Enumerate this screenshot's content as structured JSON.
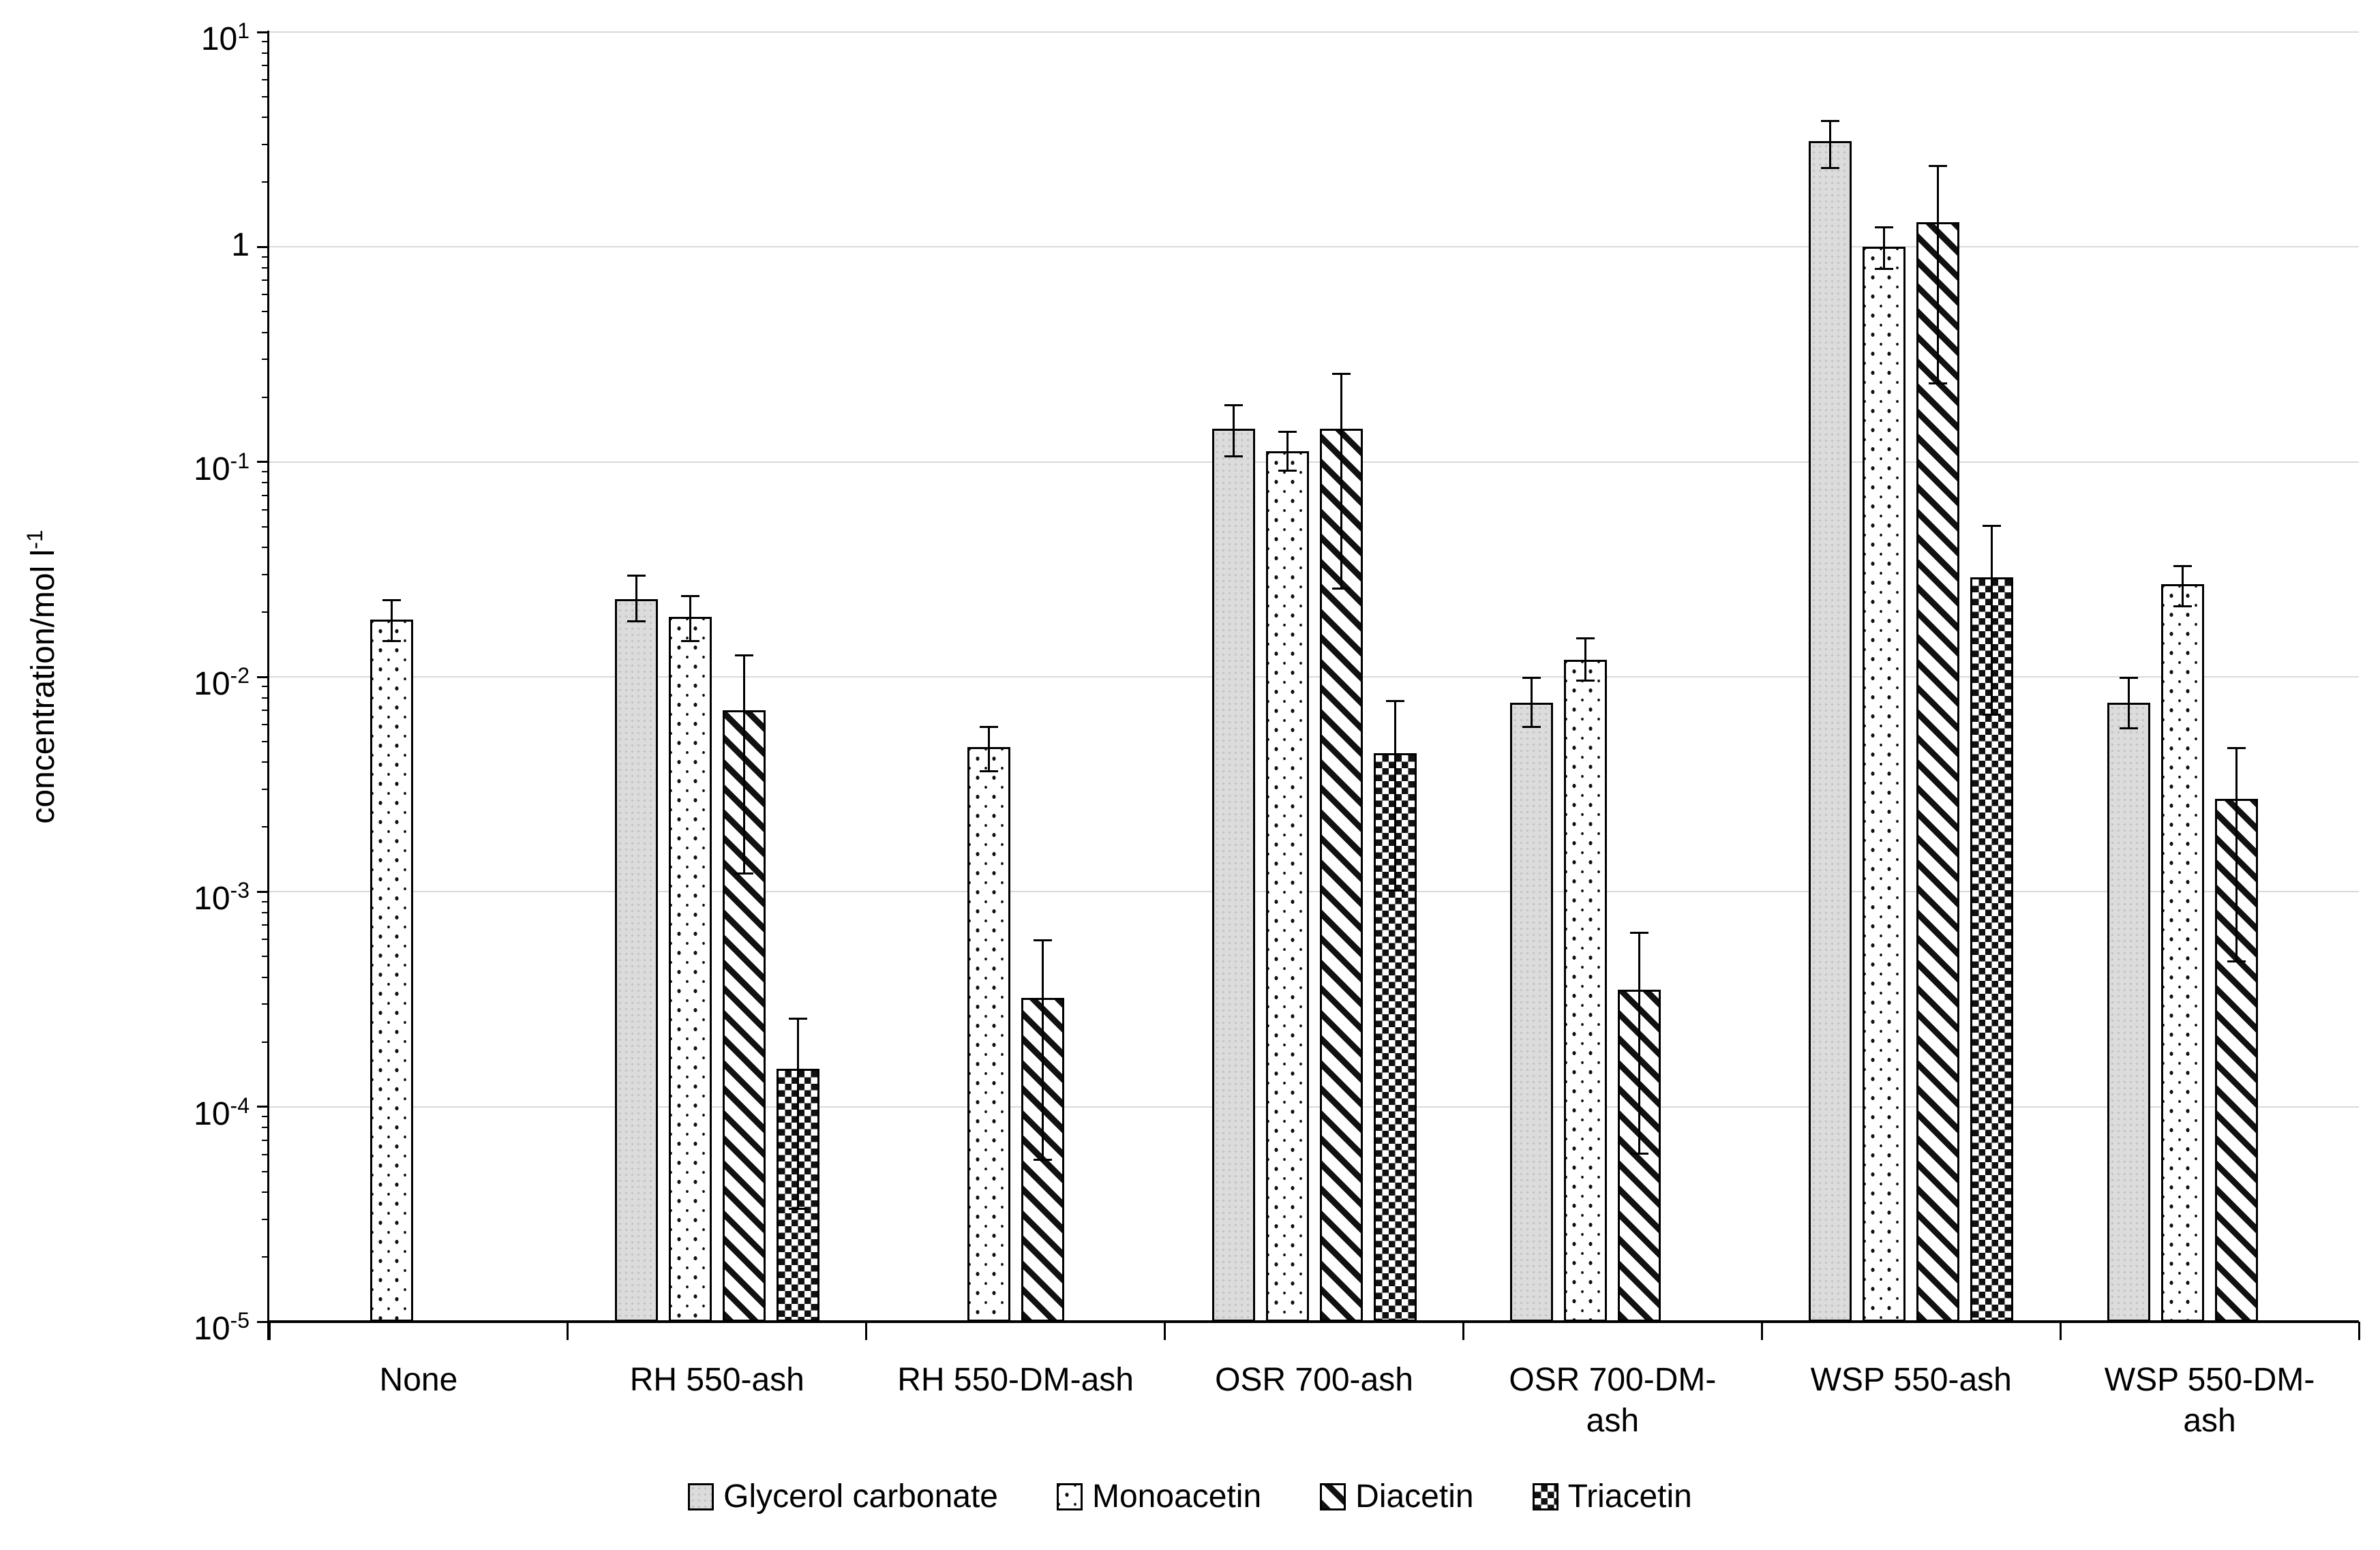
{
  "chart_data": {
    "type": "bar",
    "log_scale": true,
    "ylim": [
      1e-05,
      10
    ],
    "grid": "horizontal-major",
    "legend_position": "bottom-center",
    "y_axis": {
      "title": "concentration/mol l",
      "title_superscript": "-1",
      "tick_labels": [
        {
          "base": "10",
          "sup": "1"
        },
        {
          "base": "1",
          "sup": ""
        },
        {
          "base": "10",
          "sup": "-1"
        },
        {
          "base": "10",
          "sup": "-2"
        },
        {
          "base": "10",
          "sup": "-3"
        },
        {
          "base": "10",
          "sup": "-4"
        },
        {
          "base": "10",
          "sup": "-5"
        }
      ]
    },
    "categories": [
      {
        "label": "None",
        "lines": [
          "None"
        ]
      },
      {
        "label": "RH 550-ash",
        "lines": [
          "RH 550-ash"
        ]
      },
      {
        "label": "RH 550-DM-ash",
        "lines": [
          "RH 550-DM-ash"
        ]
      },
      {
        "label": "OSR 700-ash",
        "lines": [
          "OSR 700-ash"
        ]
      },
      {
        "label": "OSR 700-DM-ash",
        "lines": [
          "OSR 700-DM-",
          "ash"
        ]
      },
      {
        "label": "WSP 550-ash",
        "lines": [
          "WSP 550-ash"
        ]
      },
      {
        "label": "WSP 550-DM-ash",
        "lines": [
          "WSP 550-DM-",
          "ash"
        ]
      }
    ],
    "series": [
      {
        "name": "Glycerol carbonate",
        "pattern": "gray",
        "values": [
          null,
          0.023,
          null,
          0.143,
          0.0076,
          3.1,
          0.0076
        ],
        "err_high": [
          null,
          0.03,
          null,
          0.185,
          0.01,
          3.9,
          0.01
        ],
        "err_low": [
          null,
          0.018,
          null,
          0.105,
          0.0058,
          2.3,
          0.0057
        ]
      },
      {
        "name": "Monoacetin",
        "pattern": "dots",
        "values": [
          0.0185,
          0.019,
          0.0047,
          0.112,
          0.012,
          1.0,
          0.027
        ],
        "err_high": [
          0.023,
          0.024,
          0.0059,
          0.14,
          0.0153,
          1.25,
          0.033
        ],
        "err_low": [
          0.0145,
          0.0145,
          0.0036,
          0.09,
          0.0095,
          0.78,
          0.021
        ]
      },
      {
        "name": "Diacetin",
        "pattern": "stripes",
        "values": [
          null,
          0.007,
          0.00032,
          0.143,
          0.00035,
          1.3,
          0.0027
        ],
        "err_high": [
          null,
          0.0127,
          0.0006,
          0.26,
          0.00065,
          2.4,
          0.0047
        ],
        "err_low": [
          null,
          0.0012,
          5.6e-05,
          0.0255,
          6e-05,
          0.23,
          0.00047
        ]
      },
      {
        "name": "Triacetin",
        "pattern": "checker",
        "values": [
          null,
          0.00015,
          null,
          0.0044,
          null,
          0.029,
          null
        ],
        "err_high": [
          null,
          0.00026,
          null,
          0.0078,
          null,
          0.051,
          null
        ],
        "err_low": [
          null,
          3.3e-05,
          null,
          0.001,
          null,
          0.0066,
          null
        ]
      }
    ],
    "colors": {
      "bar_gray": "#dcdcdc",
      "pattern_ink": "#111111",
      "gridline": "#d9d9d9",
      "axis": "#000000",
      "background": "#ffffff"
    }
  }
}
